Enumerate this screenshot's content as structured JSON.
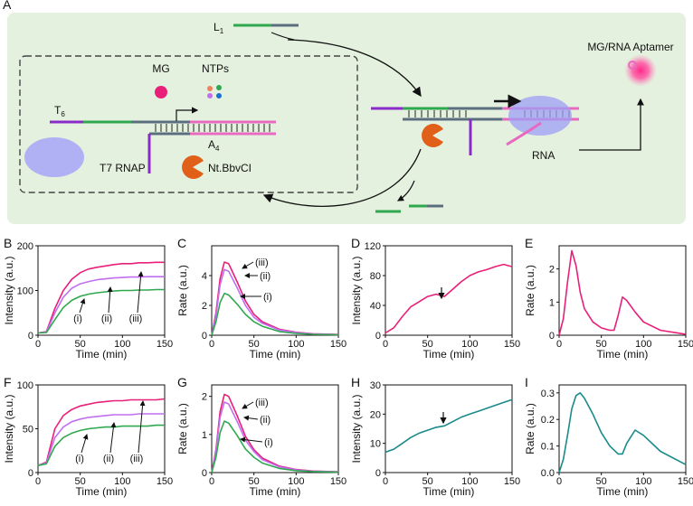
{
  "diagram": {
    "label": "A",
    "l1": {
      "text": "L",
      "sub": "1"
    },
    "t6": {
      "text": "T",
      "sub": "6"
    },
    "a4": {
      "text": "A",
      "sub": "4"
    },
    "mg": "MG",
    "ntps": "NTPs",
    "t7": "T7 RNAP",
    "nick": "Nt.BbvCI",
    "aptamer": "MG/RNA Aptamer",
    "rna": "RNA"
  },
  "chart_data": [
    {
      "type": "line",
      "label": "B",
      "xlabel": "Time (min)",
      "ylabel": "Intensity (a.u.)",
      "x": [
        0,
        10,
        20,
        30,
        40,
        50,
        60,
        70,
        80,
        90,
        100,
        110,
        120,
        130,
        140,
        150
      ],
      "xlim": [
        0,
        150
      ],
      "xticks": [
        0,
        50,
        100,
        150
      ],
      "ylim": [
        0,
        200
      ],
      "yticks": [
        0,
        100,
        200
      ],
      "annotations": [
        "(i)",
        "(ii)",
        "(iii)"
      ],
      "series": [
        {
          "color": "#e8207a",
          "values": [
            5,
            8,
            60,
            100,
            125,
            140,
            148,
            152,
            155,
            158,
            160,
            160,
            162,
            162,
            163,
            163
          ]
        },
        {
          "color": "#c06ff2",
          "values": [
            5,
            7,
            50,
            85,
            105,
            115,
            120,
            124,
            126,
            128,
            129,
            130,
            130,
            131,
            131,
            131
          ]
        },
        {
          "color": "#2fa84f",
          "values": [
            5,
            6,
            35,
            62,
            78,
            87,
            92,
            95,
            97,
            99,
            100,
            100,
            101,
            101,
            102,
            102
          ]
        }
      ]
    },
    {
      "type": "line",
      "label": "C",
      "xlabel": "Time (min)",
      "ylabel": "Rate (a.u.)",
      "x": [
        0,
        5,
        10,
        15,
        20,
        30,
        40,
        50,
        60,
        80,
        100,
        120,
        150
      ],
      "xlim": [
        0,
        150
      ],
      "xticks": [
        0,
        50,
        100,
        150
      ],
      "ylim": [
        0,
        6
      ],
      "yticks": [
        0,
        2,
        4
      ],
      "annotations": [
        "(iii)",
        "(ii)",
        "(i)"
      ],
      "series": [
        {
          "color": "#e8207a",
          "values": [
            0,
            1.5,
            3.8,
            4.9,
            4.8,
            3.6,
            2.3,
            1.4,
            0.9,
            0.4,
            0.2,
            0.1,
            0.05
          ]
        },
        {
          "color": "#c06ff2",
          "values": [
            0,
            1.3,
            3.4,
            4.4,
            4.3,
            3.2,
            2.0,
            1.2,
            0.8,
            0.35,
            0.18,
            0.08,
            0.04
          ]
        },
        {
          "color": "#2fa84f",
          "values": [
            0,
            0.9,
            2.2,
            2.8,
            2.7,
            2.1,
            1.4,
            0.9,
            0.6,
            0.25,
            0.12,
            0.06,
            0.03
          ]
        }
      ]
    },
    {
      "type": "line",
      "label": "D",
      "xlabel": "Time (min)",
      "ylabel": "Intensity (a.u.)",
      "x": [
        0,
        10,
        20,
        30,
        40,
        50,
        60,
        70,
        80,
        90,
        100,
        110,
        120,
        130,
        140,
        150
      ],
      "xlim": [
        0,
        150
      ],
      "xticks": [
        0,
        50,
        100,
        150
      ],
      "ylim": [
        0,
        120
      ],
      "yticks": [
        0,
        40,
        80,
        120
      ],
      "series": [
        {
          "color": "#e8207a",
          "values": [
            3,
            10,
            25,
            38,
            45,
            52,
            55,
            52,
            62,
            72,
            80,
            85,
            88,
            92,
            95,
            92
          ]
        }
      ]
    },
    {
      "type": "line",
      "label": "E",
      "xlabel": "Time (min)",
      "ylabel": "Rate (a.u.)",
      "x": [
        0,
        5,
        10,
        15,
        20,
        25,
        30,
        40,
        50,
        60,
        65,
        70,
        75,
        80,
        90,
        100,
        120,
        150
      ],
      "xlim": [
        0,
        150
      ],
      "xticks": [
        0,
        50,
        100,
        150
      ],
      "ylim": [
        0,
        2.7
      ],
      "yticks": [
        0,
        1,
        2
      ],
      "series": [
        {
          "color": "#e8207a",
          "values": [
            0,
            0.5,
            1.6,
            2.55,
            2.1,
            1.3,
            0.8,
            0.4,
            0.22,
            0.15,
            0.15,
            0.6,
            1.15,
            1.05,
            0.7,
            0.4,
            0.15,
            0.03
          ]
        }
      ]
    },
    {
      "type": "line",
      "label": "F",
      "xlabel": "Time (min)",
      "ylabel": "Intensity (a.u.)",
      "x": [
        0,
        10,
        20,
        30,
        40,
        50,
        60,
        70,
        80,
        90,
        100,
        110,
        120,
        130,
        140,
        150
      ],
      "xlim": [
        0,
        150
      ],
      "xticks": [
        0,
        50,
        100,
        150
      ],
      "ylim": [
        0,
        100
      ],
      "yticks": [
        0,
        50,
        100
      ],
      "annotations": [
        "(i)",
        "(ii)",
        "(iii)"
      ],
      "series": [
        {
          "color": "#e8207a",
          "values": [
            8,
            12,
            50,
            65,
            72,
            76,
            78,
            80,
            81,
            82,
            82,
            83,
            83,
            83,
            83,
            84
          ]
        },
        {
          "color": "#c06ff2",
          "values": [
            8,
            11,
            40,
            52,
            58,
            61,
            63,
            64,
            65,
            66,
            66,
            66,
            67,
            67,
            67,
            67
          ]
        },
        {
          "color": "#2fa84f",
          "values": [
            8,
            10,
            30,
            40,
            45,
            48,
            50,
            51,
            52,
            52,
            53,
            53,
            53,
            53,
            54,
            54
          ]
        }
      ]
    },
    {
      "type": "line",
      "label": "G",
      "xlabel": "Time (min)",
      "ylabel": "Rate (a.u.)",
      "x": [
        0,
        5,
        10,
        15,
        20,
        30,
        40,
        50,
        60,
        80,
        100,
        120,
        150
      ],
      "xlim": [
        0,
        150
      ],
      "xticks": [
        0,
        50,
        100,
        150
      ],
      "ylim": [
        0,
        2.3
      ],
      "yticks": [
        0,
        1,
        2
      ],
      "annotations": [
        "(iii)",
        "(ii)",
        "(i)"
      ],
      "series": [
        {
          "color": "#e8207a",
          "values": [
            0,
            0.6,
            1.6,
            2.05,
            2.0,
            1.5,
            0.95,
            0.6,
            0.38,
            0.17,
            0.08,
            0.04,
            0.02
          ]
        },
        {
          "color": "#c06ff2",
          "values": [
            0,
            0.55,
            1.45,
            1.85,
            1.8,
            1.35,
            0.85,
            0.55,
            0.34,
            0.15,
            0.07,
            0.035,
            0.02
          ]
        },
        {
          "color": "#2fa84f",
          "values": [
            0,
            0.4,
            1.05,
            1.35,
            1.3,
            0.98,
            0.62,
            0.4,
            0.25,
            0.11,
            0.05,
            0.025,
            0.01
          ]
        }
      ]
    },
    {
      "type": "line",
      "label": "H",
      "xlabel": "Time (min)",
      "ylabel": "Intensity (a.u.)",
      "x": [
        0,
        10,
        20,
        30,
        40,
        50,
        60,
        70,
        80,
        90,
        100,
        110,
        120,
        130,
        140,
        150
      ],
      "xlim": [
        0,
        150
      ],
      "xticks": [
        0,
        50,
        100,
        150
      ],
      "ylim": [
        0,
        30
      ],
      "yticks": [
        0,
        10,
        20,
        30
      ],
      "series": [
        {
          "color": "#1a8a8a",
          "values": [
            7,
            8,
            10,
            12,
            13.5,
            14.5,
            15.5,
            16,
            17.5,
            19,
            20,
            21,
            22,
            23,
            24,
            25
          ]
        }
      ]
    },
    {
      "type": "line",
      "label": "I",
      "xlabel": "Time (min)",
      "ylabel": "Rate (a.u.)",
      "x": [
        0,
        5,
        10,
        15,
        20,
        25,
        30,
        40,
        50,
        60,
        70,
        75,
        80,
        90,
        100,
        120,
        150
      ],
      "xlim": [
        0,
        150
      ],
      "xticks": [
        0,
        50,
        100,
        150
      ],
      "ylim": [
        0,
        0.33
      ],
      "yticks": [
        {
          "value": 0,
          "label": "0.0"
        },
        0.1,
        0.2,
        0.3
      ],
      "series": [
        {
          "color": "#1a8a8a",
          "values": [
            0,
            0.05,
            0.14,
            0.24,
            0.29,
            0.3,
            0.28,
            0.22,
            0.15,
            0.1,
            0.07,
            0.07,
            0.11,
            0.16,
            0.14,
            0.08,
            0.03
          ]
        }
      ]
    }
  ]
}
